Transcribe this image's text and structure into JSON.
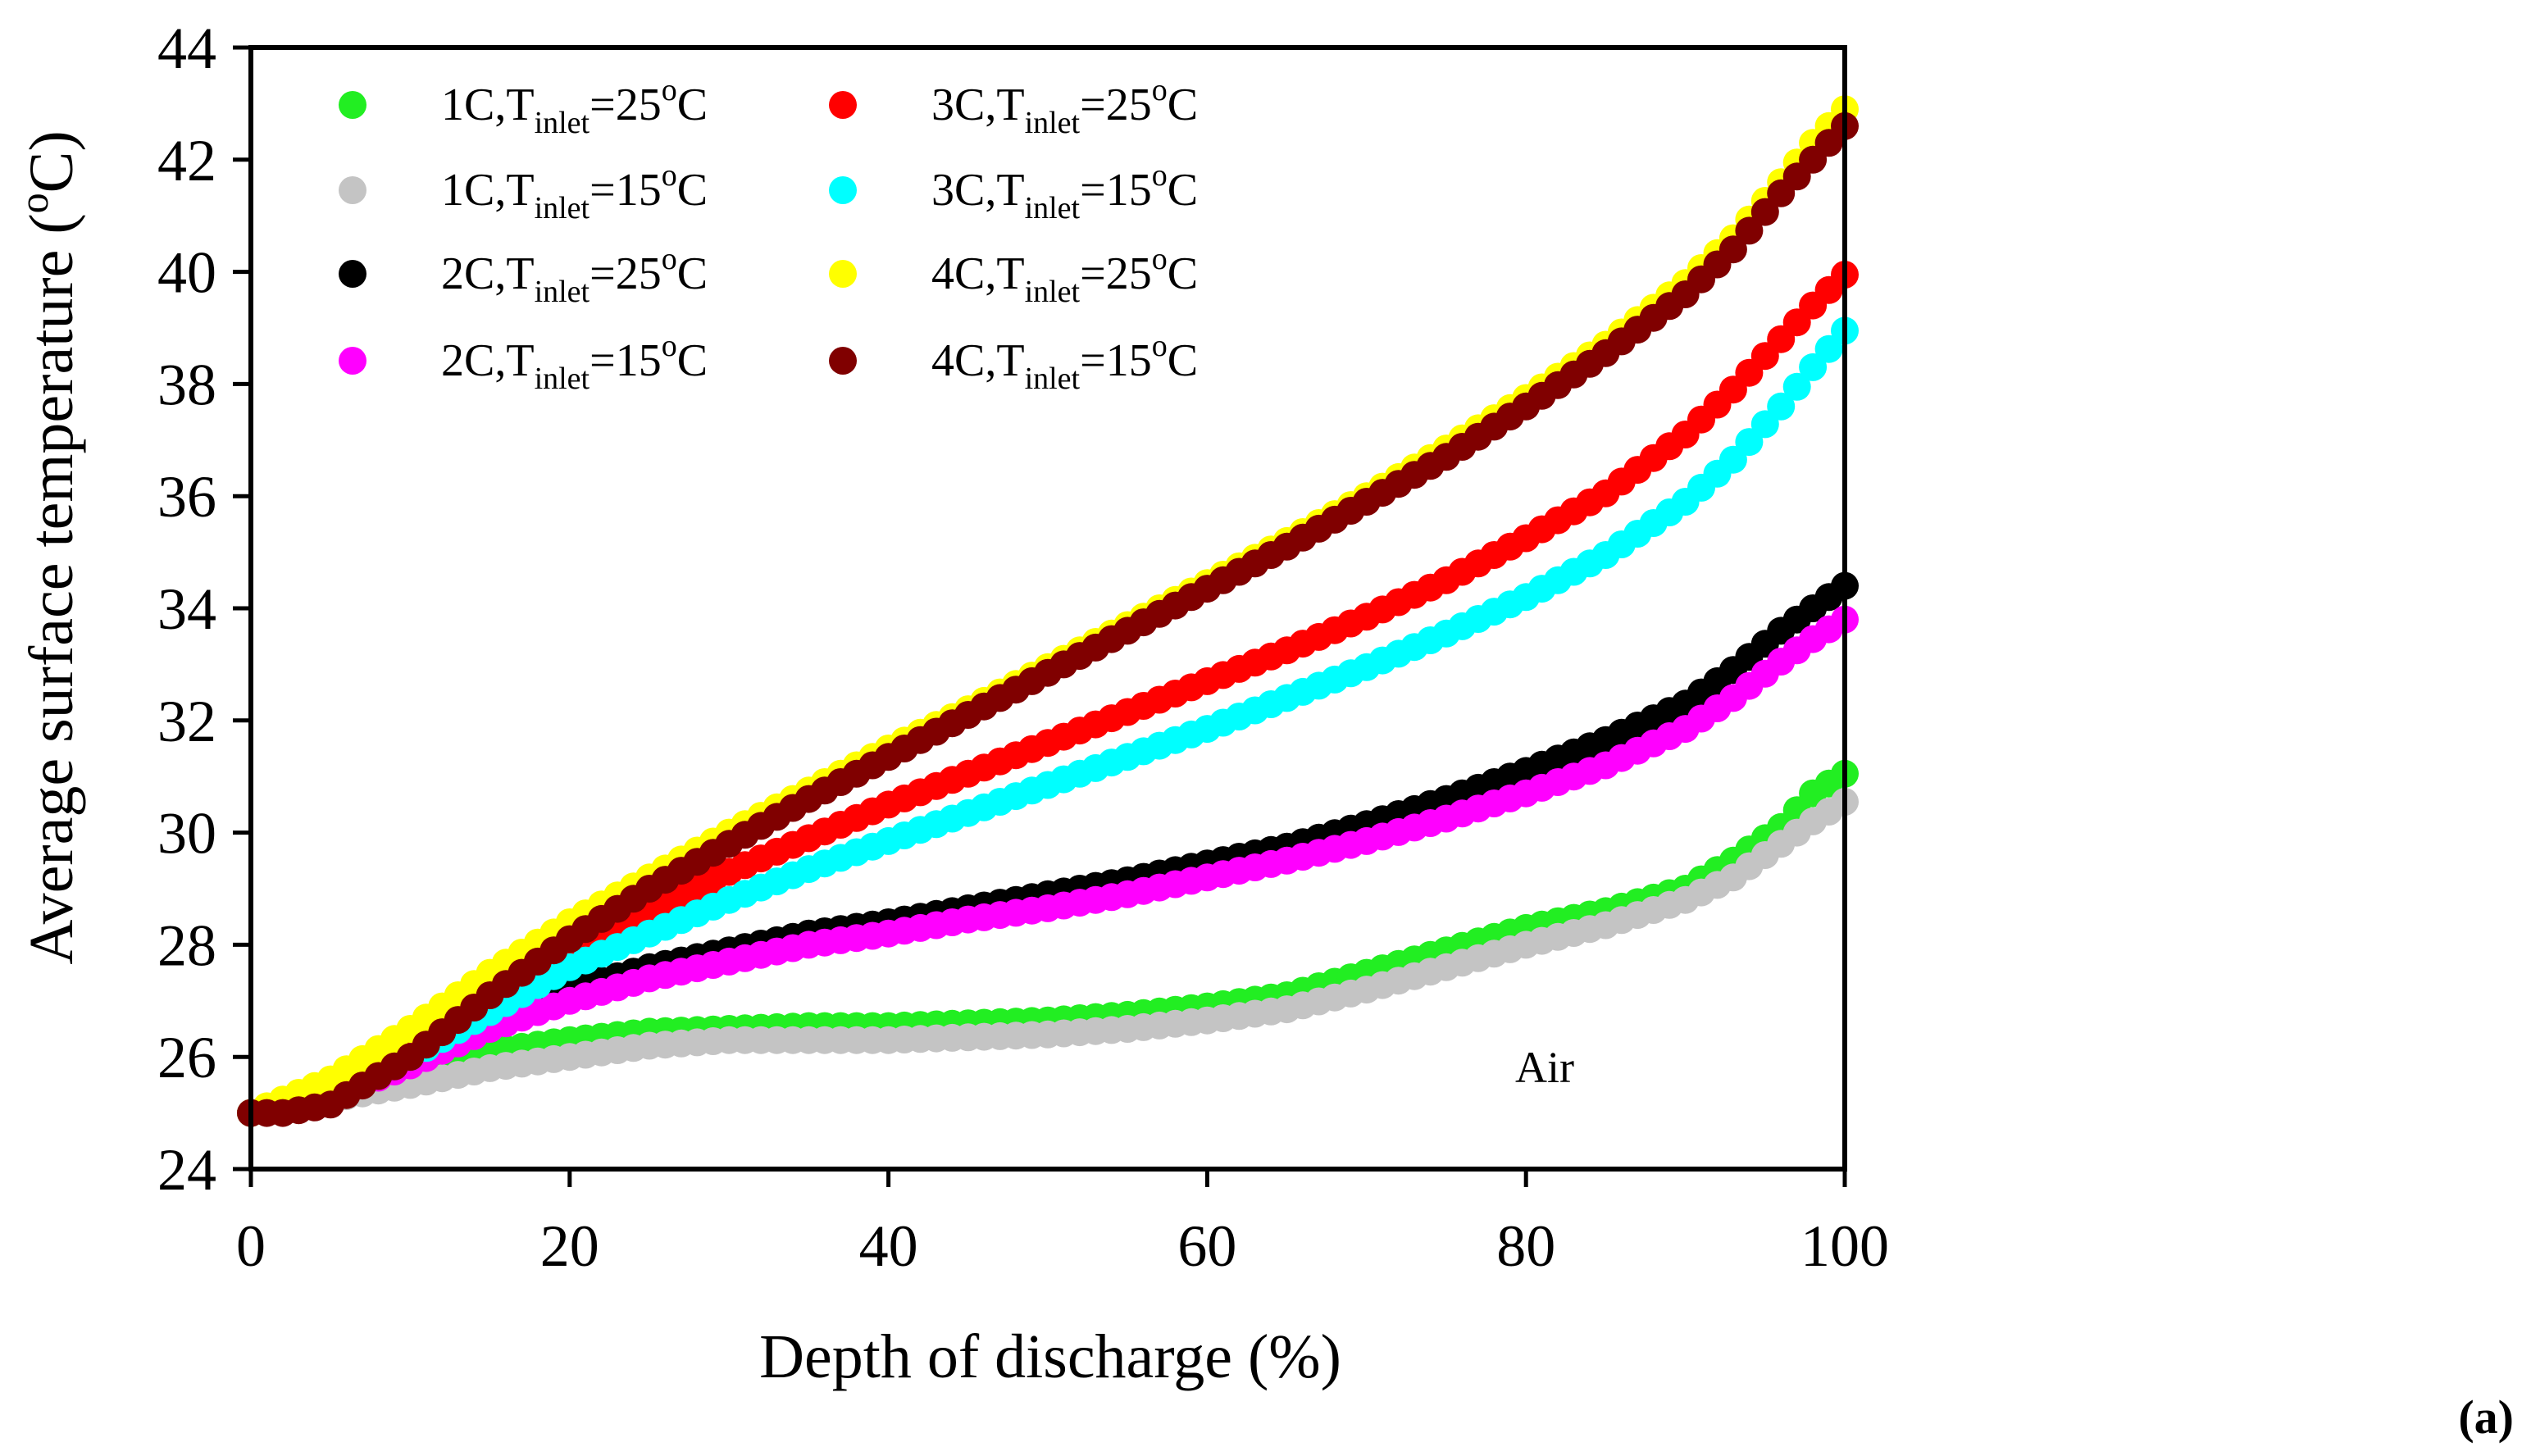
{
  "chart_data": {
    "type": "scatter",
    "xlabel": "Depth of discharge (%)",
    "ylabel_main": "Average surface temperature (",
    "ylabel_sup": "o",
    "ylabel_tail": "C)",
    "xlim": [
      0,
      100
    ],
    "ylim": [
      24,
      44
    ],
    "x_ticks": [
      0,
      20,
      40,
      60,
      80,
      100
    ],
    "y_ticks": [
      24,
      26,
      28,
      30,
      32,
      34,
      36,
      38,
      40,
      42,
      44
    ],
    "grid": false,
    "legend_position": "top-left",
    "annotation": "Air",
    "panel_label": "(a)",
    "series": [
      {
        "name": "1C,Tinlet=25oC",
        "label_rate": "1C,T",
        "label_sub": "inlet",
        "label_eq": "=25",
        "label_sup": "o",
        "label_unit": "C",
        "color": "#22ee22",
        "x": [
          0,
          5,
          10,
          15,
          20,
          25,
          30,
          35,
          40,
          45,
          50,
          55,
          60,
          65,
          70,
          75,
          80,
          85,
          90,
          93,
          96,
          98,
          100
        ],
        "y": [
          25.0,
          25.3,
          25.7,
          26.1,
          26.3,
          26.45,
          26.5,
          26.55,
          26.55,
          26.6,
          26.65,
          26.75,
          26.9,
          27.1,
          27.5,
          27.9,
          28.3,
          28.6,
          29.0,
          29.5,
          30.1,
          30.7,
          31.05
        ]
      },
      {
        "name": "1C,Tinlet=15oC",
        "label_rate": "1C,T",
        "label_sub": "inlet",
        "label_eq": "=15",
        "label_sup": "o",
        "label_unit": "C",
        "color": "#c4c4c4",
        "x": [
          0,
          5,
          10,
          15,
          20,
          25,
          30,
          35,
          40,
          45,
          50,
          55,
          60,
          65,
          70,
          75,
          80,
          85,
          90,
          93,
          96,
          98,
          100
        ],
        "y": [
          25.0,
          25.25,
          25.5,
          25.8,
          26.0,
          26.2,
          26.3,
          26.3,
          26.3,
          26.35,
          26.4,
          26.5,
          26.65,
          26.85,
          27.2,
          27.6,
          28.0,
          28.35,
          28.8,
          29.2,
          29.8,
          30.2,
          30.55
        ]
      },
      {
        "name": "2C,Tinlet=25oC",
        "label_rate": "2C,T",
        "label_sub": "inlet",
        "label_eq": "=25",
        "label_sup": "o",
        "label_unit": "C",
        "color": "#000000",
        "x": [
          0,
          5,
          10,
          15,
          20,
          25,
          30,
          35,
          40,
          45,
          50,
          55,
          60,
          65,
          70,
          75,
          80,
          85,
          90,
          93,
          96,
          98,
          100
        ],
        "y": [
          25.0,
          25.35,
          25.9,
          26.6,
          27.2,
          27.6,
          27.9,
          28.2,
          28.4,
          28.65,
          28.9,
          29.15,
          29.45,
          29.75,
          30.15,
          30.6,
          31.1,
          31.65,
          32.3,
          32.9,
          33.6,
          34.0,
          34.4
        ]
      },
      {
        "name": "2C,Tinlet=15oC",
        "label_rate": "2C,T",
        "label_sub": "inlet",
        "label_eq": "=15",
        "label_sup": "o",
        "label_unit": "C",
        "color": "#ff00ff",
        "x": [
          0,
          5,
          10,
          15,
          20,
          25,
          30,
          35,
          40,
          45,
          50,
          55,
          60,
          65,
          70,
          75,
          80,
          85,
          90,
          93,
          96,
          98,
          100
        ],
        "y": [
          25.0,
          25.3,
          25.85,
          26.5,
          27.0,
          27.4,
          27.7,
          28.0,
          28.2,
          28.45,
          28.65,
          28.9,
          29.2,
          29.5,
          29.85,
          30.25,
          30.7,
          31.2,
          31.85,
          32.4,
          33.05,
          33.45,
          33.8
        ]
      },
      {
        "name": "3C,Tinlet=25oC",
        "label_rate": "3C,T",
        "label_sub": "inlet",
        "label_eq": "=25",
        "label_sup": "o",
        "label_unit": "C",
        "color": "#ff0000",
        "x": [
          0,
          5,
          10,
          15,
          20,
          25,
          30,
          35,
          40,
          45,
          50,
          55,
          60,
          65,
          70,
          75,
          80,
          85,
          90,
          93,
          96,
          98,
          100
        ],
        "y": [
          25.0,
          25.4,
          26.2,
          27.1,
          27.9,
          28.6,
          29.3,
          29.9,
          30.5,
          31.05,
          31.6,
          32.15,
          32.7,
          33.25,
          33.85,
          34.5,
          35.25,
          36.05,
          37.1,
          37.9,
          38.8,
          39.4,
          39.95
        ]
      },
      {
        "name": "3C,Tinlet=15oC",
        "label_rate": "3C,T",
        "label_sub": "inlet",
        "label_eq": "=15",
        "label_sup": "o",
        "label_unit": "C",
        "color": "#00ffff",
        "x": [
          0,
          5,
          10,
          15,
          20,
          25,
          30,
          35,
          40,
          45,
          50,
          55,
          60,
          65,
          70,
          75,
          80,
          85,
          90,
          93,
          96,
          98,
          100
        ],
        "y": [
          25.0,
          25.35,
          26.0,
          26.8,
          27.6,
          28.2,
          28.8,
          29.35,
          29.85,
          30.35,
          30.85,
          31.35,
          31.85,
          32.4,
          32.95,
          33.55,
          34.2,
          34.95,
          35.9,
          36.65,
          37.6,
          38.3,
          38.95
        ]
      },
      {
        "name": "4C,Tinlet=25oC",
        "label_rate": "4C,T",
        "label_sub": "inlet",
        "label_eq": "=25",
        "label_sup": "o",
        "label_unit": "C",
        "color": "#ffff00",
        "x": [
          0,
          5,
          10,
          15,
          20,
          25,
          30,
          35,
          40,
          45,
          50,
          55,
          60,
          65,
          70,
          75,
          80,
          85,
          90,
          93,
          96,
          98,
          100
        ],
        "y": [
          25.0,
          25.6,
          26.5,
          27.5,
          28.4,
          29.2,
          30.0,
          30.75,
          31.5,
          32.2,
          32.95,
          33.7,
          34.45,
          35.2,
          36.0,
          36.85,
          37.75,
          38.7,
          39.8,
          40.6,
          41.6,
          42.3,
          42.9
        ]
      },
      {
        "name": "4C,Tinlet=15oC",
        "label_rate": "4C,T",
        "label_sub": "inlet",
        "label_eq": "=15",
        "label_sup": "o",
        "label_unit": "C",
        "color": "#800000",
        "x": [
          0,
          1,
          2,
          3,
          5,
          10,
          15,
          20,
          25,
          30,
          35,
          40,
          45,
          50,
          55,
          60,
          65,
          70,
          75,
          80,
          85,
          90,
          93,
          96,
          98,
          100
        ],
        "y": [
          25.0,
          25.0,
          25.0,
          25.05,
          25.15,
          26.0,
          27.1,
          28.1,
          29.0,
          29.8,
          30.6,
          31.35,
          32.1,
          32.85,
          33.6,
          34.35,
          35.1,
          35.9,
          36.7,
          37.6,
          38.55,
          39.6,
          40.4,
          41.4,
          42.0,
          42.6
        ]
      }
    ]
  }
}
